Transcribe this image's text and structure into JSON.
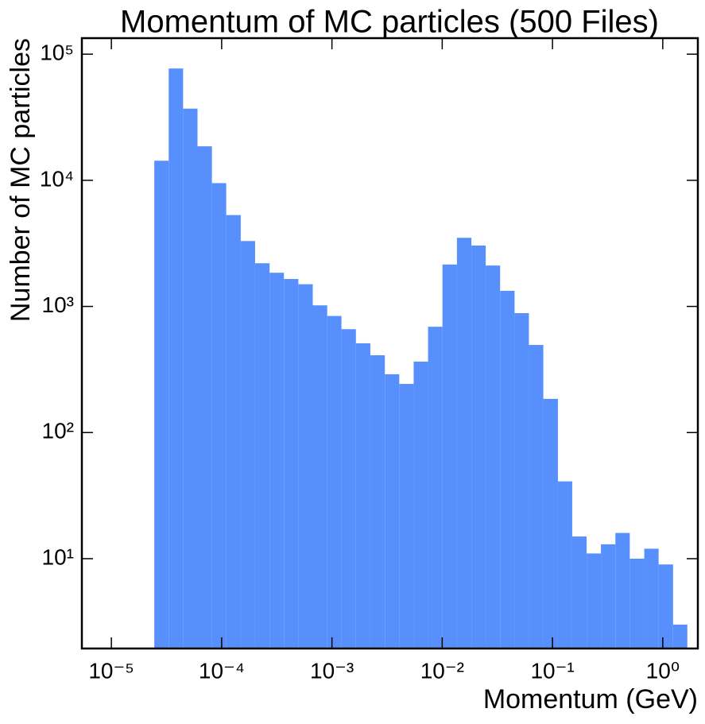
{
  "chart_data": {
    "type": "histogram",
    "title": "Momentum of MC particles (500 Files)",
    "xlabel": "Momentum (GeV)",
    "ylabel": "Number of MC particles",
    "xscale": "log",
    "yscale": "log",
    "color": "#5790fc",
    "bins": [
      2.45e-05,
      3.31e-05,
      4.47e-05,
      6.04e-05,
      8.16e-05,
      0.00011,
      0.000149,
      0.000201,
      0.000272,
      0.000367,
      0.000496,
      0.00067,
      0.000906,
      0.00122,
      0.00165,
      0.00223,
      0.00302,
      0.00408,
      0.00551,
      0.00744,
      0.01005,
      0.0136,
      0.0184,
      0.0248,
      0.0335,
      0.0453,
      0.0611,
      0.0826,
      0.112,
      0.151,
      0.204,
      0.275,
      0.372,
      0.502,
      0.679,
      0.917,
      1.24,
      1.67
    ],
    "values": [
      14300,
      77000,
      37000,
      18600,
      9500,
      5300,
      3300,
      2200,
      1850,
      1650,
      1500,
      1020,
      840,
      660,
      510,
      410,
      290,
      243,
      365,
      690,
      2150,
      3500,
      3040,
      2110,
      1330,
      885,
      495,
      185,
      41,
      15,
      11,
      13,
      16,
      10,
      12,
      9,
      3
    ],
    "xlim": [
      5.4e-06,
      2.08
    ],
    "ylim": [
      1.94,
      134000
    ],
    "xticks": [
      {
        "value": 1e-05,
        "label": "10⁻⁵"
      },
      {
        "value": 0.0001,
        "label": "10⁻⁴"
      },
      {
        "value": 0.001,
        "label": "10⁻³"
      },
      {
        "value": 0.01,
        "label": "10⁻²"
      },
      {
        "value": 0.1,
        "label": "10⁻¹"
      },
      {
        "value": 1,
        "label": "10⁰"
      }
    ],
    "yticks": [
      {
        "value": 10,
        "label": "10¹"
      },
      {
        "value": 100,
        "label": "10²"
      },
      {
        "value": 1000,
        "label": "10³"
      },
      {
        "value": 10000,
        "label": "10⁴"
      },
      {
        "value": 100000,
        "label": "10⁵"
      }
    ]
  }
}
